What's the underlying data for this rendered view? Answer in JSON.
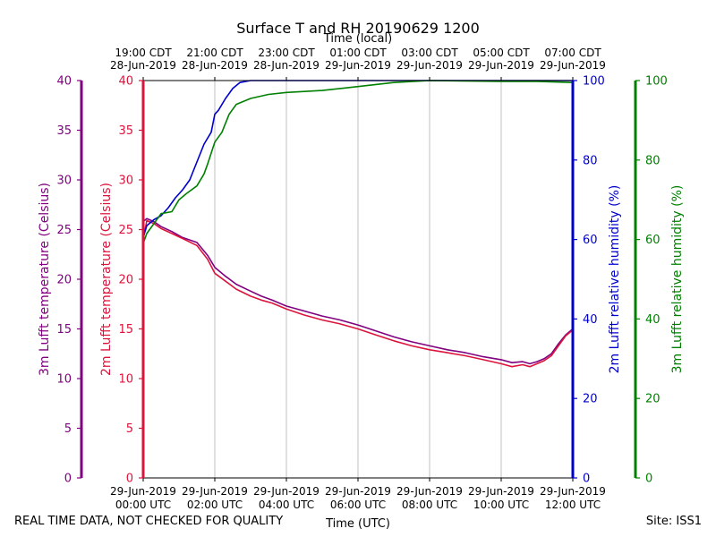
{
  "chart_data": {
    "type": "line",
    "title": "Surface T and RH 20190629 1200",
    "top_axis_label": "Time (local)",
    "bottom_axis_label": "Time (UTC)",
    "footer_left": "REAL TIME DATA, NOT CHECKED FOR QUALITY",
    "footer_right": "Site: ISS1",
    "x_range_utc_hours": [
      0,
      12
    ],
    "bottom_ticks": [
      {
        "hour": 0,
        "date": "29-Jun-2019",
        "time": "00:00 UTC"
      },
      {
        "hour": 2,
        "date": "29-Jun-2019",
        "time": "02:00 UTC"
      },
      {
        "hour": 4,
        "date": "29-Jun-2019",
        "time": "04:00 UTC"
      },
      {
        "hour": 6,
        "date": "29-Jun-2019",
        "time": "06:00 UTC"
      },
      {
        "hour": 8,
        "date": "29-Jun-2019",
        "time": "08:00 UTC"
      },
      {
        "hour": 10,
        "date": "29-Jun-2019",
        "time": "10:00 UTC"
      },
      {
        "hour": 12,
        "date": "29-Jun-2019",
        "time": "12:00 UTC"
      }
    ],
    "top_ticks": [
      {
        "hour": 0,
        "time": "19:00 CDT",
        "date": "28-Jun-2019"
      },
      {
        "hour": 2,
        "time": "21:00 CDT",
        "date": "28-Jun-2019"
      },
      {
        "hour": 4,
        "time": "23:00 CDT",
        "date": "28-Jun-2019"
      },
      {
        "hour": 6,
        "time": "01:00 CDT",
        "date": "29-Jun-2019"
      },
      {
        "hour": 8,
        "time": "03:00 CDT",
        "date": "29-Jun-2019"
      },
      {
        "hour": 10,
        "time": "05:00 CDT",
        "date": "29-Jun-2019"
      },
      {
        "hour": 12,
        "time": "07:00 CDT",
        "date": "29-Jun-2019"
      }
    ],
    "grid": "vertical",
    "axes": [
      {
        "id": "t3",
        "label": "3m Lufft temperature (Celsius)",
        "color": "#800080",
        "range": [
          0,
          40
        ],
        "ticks": [
          0,
          5,
          10,
          15,
          20,
          25,
          30,
          35,
          40
        ]
      },
      {
        "id": "t2",
        "label": "2m Lufft temperature (Celsius)",
        "color": "#dc143c",
        "range": [
          0,
          40
        ],
        "ticks": [
          0,
          5,
          10,
          15,
          20,
          25,
          30,
          35,
          40
        ]
      },
      {
        "id": "rh2",
        "label": "2m Lufft relative humidity (%)",
        "color": "#0000cd",
        "range": [
          0,
          100
        ],
        "ticks": [
          0,
          20,
          40,
          60,
          80,
          100
        ]
      },
      {
        "id": "rh3",
        "label": "3m Lufft relative humidity (%)",
        "color": "#008000",
        "range": [
          0,
          100
        ],
        "ticks": [
          0,
          20,
          40,
          60,
          80,
          100
        ]
      }
    ],
    "series": [
      {
        "axis": "t3",
        "color": "#800080",
        "x": [
          0,
          0.1,
          0.3,
          0.5,
          0.8,
          1.1,
          1.5,
          1.8,
          2.0,
          2.3,
          2.6,
          3.0,
          3.3,
          3.6,
          4.0,
          4.5,
          5.0,
          5.5,
          6.0,
          6.5,
          7.0,
          7.5,
          8.0,
          8.5,
          9.0,
          9.5,
          10.0,
          10.3,
          10.6,
          10.8,
          11.0,
          11.2,
          11.4,
          11.6,
          11.8,
          12.0
        ],
        "y": [
          25.8,
          26.1,
          25.8,
          25.3,
          24.8,
          24.2,
          23.7,
          22.4,
          21.2,
          20.3,
          19.5,
          18.8,
          18.3,
          17.9,
          17.3,
          16.8,
          16.3,
          15.9,
          15.4,
          14.8,
          14.2,
          13.7,
          13.3,
          12.9,
          12.6,
          12.2,
          11.9,
          11.6,
          11.7,
          11.5,
          11.7,
          12.0,
          12.5,
          13.5,
          14.4,
          15.0
        ]
      },
      {
        "axis": "t2",
        "color": "#dc143c",
        "x": [
          0,
          0.1,
          0.3,
          0.5,
          0.8,
          1.1,
          1.5,
          1.8,
          2.0,
          2.3,
          2.6,
          3.0,
          3.3,
          3.6,
          4.0,
          4.5,
          5.0,
          5.5,
          6.0,
          6.5,
          7.0,
          7.5,
          8.0,
          8.5,
          9.0,
          9.5,
          10.0,
          10.3,
          10.6,
          10.8,
          11.0,
          11.2,
          11.4,
          11.6,
          11.8,
          12.0
        ],
        "y": [
          24.0,
          25.9,
          25.6,
          25.1,
          24.6,
          24.1,
          23.4,
          22.0,
          20.6,
          19.8,
          19.0,
          18.3,
          17.9,
          17.6,
          17.0,
          16.4,
          15.9,
          15.5,
          15.0,
          14.4,
          13.8,
          13.3,
          12.9,
          12.6,
          12.3,
          11.9,
          11.5,
          11.2,
          11.4,
          11.2,
          11.5,
          11.8,
          12.3,
          13.3,
          14.3,
          14.9
        ]
      },
      {
        "axis": "rh2",
        "color": "#0000cd",
        "x": [
          0,
          0.1,
          0.3,
          0.5,
          0.7,
          0.9,
          1.1,
          1.3,
          1.5,
          1.7,
          1.9,
          2.0,
          2.1,
          2.3,
          2.5,
          2.7,
          3.0,
          4.0,
          6.0,
          8.0,
          10.0,
          12.0
        ],
        "y": [
          60.5,
          63.5,
          65.0,
          66.0,
          68.0,
          70.5,
          72.5,
          75.0,
          79.5,
          84.0,
          87.0,
          91.5,
          92.5,
          95.5,
          98.0,
          99.5,
          100,
          100,
          100,
          100,
          100,
          100
        ]
      },
      {
        "axis": "rh3",
        "color": "#008000",
        "x": [
          0,
          0.1,
          0.3,
          0.5,
          0.8,
          1.0,
          1.2,
          1.5,
          1.7,
          1.8,
          2.0,
          2.2,
          2.4,
          2.6,
          3.0,
          3.5,
          4.0,
          5.0,
          6.0,
          7.0,
          8.0,
          10.0,
          11.0,
          12.0
        ],
        "y": [
          59.0,
          61.5,
          64.0,
          66.5,
          67.0,
          70.0,
          71.5,
          73.5,
          76.5,
          79.0,
          84.5,
          87.0,
          91.5,
          94.0,
          95.5,
          96.5,
          97.0,
          97.5,
          98.5,
          99.5,
          100,
          99.8,
          99.8,
          99.5
        ]
      }
    ]
  }
}
